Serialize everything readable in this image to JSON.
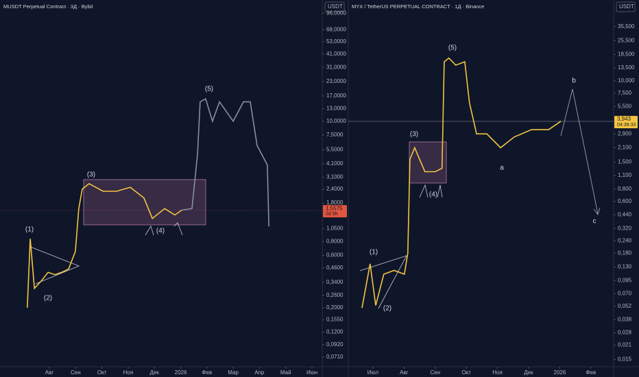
{
  "chart_data": [
    {
      "type": "line",
      "title": "MUSDT Perpetual Contract · 3Д · Bybit",
      "currency": "USDT",
      "log_scale": true,
      "xlim": [
        -0.88,
        11.39
      ],
      "ylim": [
        0.058,
        101
      ],
      "xticks": [
        {
          "value": 1,
          "label": "Авг"
        },
        {
          "value": 2,
          "label": "Сен"
        },
        {
          "value": 3,
          "label": "Окт"
        },
        {
          "value": 4,
          "label": "Ноя"
        },
        {
          "value": 5,
          "label": "Дек"
        },
        {
          "value": 6,
          "label": "2026"
        },
        {
          "value": 7,
          "label": "Фев"
        },
        {
          "value": 8,
          "label": "Мар"
        },
        {
          "value": 9,
          "label": "Апр"
        },
        {
          "value": 10,
          "label": "Май"
        },
        {
          "value": 11,
          "label": "Июн"
        }
      ],
      "yticks": [
        {
          "value": 96,
          "label": "96,0000"
        },
        {
          "value": 68,
          "label": "68,0000"
        },
        {
          "value": 53,
          "label": "53,0000"
        },
        {
          "value": 41,
          "label": "41,0000"
        },
        {
          "value": 31,
          "label": "31,0000"
        },
        {
          "value": 23,
          "label": "23,0000"
        },
        {
          "value": 17,
          "label": "17,0000"
        },
        {
          "value": 13,
          "label": "13,0000"
        },
        {
          "value": 10,
          "label": "10,0000"
        },
        {
          "value": 7.5,
          "label": "7,5000"
        },
        {
          "value": 5.5,
          "label": "5,5000"
        },
        {
          "value": 4.1,
          "label": "4,1000"
        },
        {
          "value": 3.1,
          "label": "3,1000"
        },
        {
          "value": 2.4,
          "label": "2,4000"
        },
        {
          "value": 1.8,
          "label": "1,8000"
        },
        {
          "value": 1.05,
          "label": "1,0500"
        },
        {
          "value": 0.8,
          "label": "0,8000"
        },
        {
          "value": 0.6,
          "label": "0,6000"
        },
        {
          "value": 0.46,
          "label": "0,4600"
        },
        {
          "value": 0.34,
          "label": "0,3400"
        },
        {
          "value": 0.26,
          "label": "0,2600"
        },
        {
          "value": 0.2,
          "label": "0,2000"
        },
        {
          "value": 0.155,
          "label": "0,1550"
        },
        {
          "value": 0.12,
          "label": "0,1200"
        },
        {
          "value": 0.092,
          "label": "0,0920"
        },
        {
          "value": 0.071,
          "label": "0,0710"
        }
      ],
      "last_price": {
        "value": 1.5575,
        "label": "1,5575"
      },
      "countdown": "2d 5h",
      "badge_color": "#e0553f",
      "series": [
        {
          "color": "#f5c542",
          "x": [
            0.16,
            0.27,
            0.43,
            0.69,
            0.95,
            1.21,
            1.47,
            1.73,
            1.99,
            2.12,
            2.25,
            2.51,
            3.04,
            3.56,
            4.08,
            4.6,
            4.92,
            5.39,
            5.78,
            6.04
          ],
          "values": [
            0.2,
            0.85,
            0.3,
            0.35,
            0.42,
            0.4,
            0.42,
            0.45,
            0.65,
            1.6,
            2.4,
            2.7,
            2.3,
            2.3,
            2.5,
            2.0,
            1.3,
            1.6,
            1.4,
            1.55
          ]
        },
        {
          "color": "#8a8f9e",
          "x": [
            6.04,
            6.43,
            6.64,
            6.74,
            6.95,
            7.21,
            7.48,
            8.0,
            8.39,
            8.65,
            8.91,
            9.3,
            9.36
          ],
          "values": [
            1.55,
            1.6,
            5,
            15,
            16,
            10,
            15,
            10,
            15,
            15,
            6,
            4,
            1.1
          ]
        }
      ],
      "annotations": [
        "(1)",
        "(2)",
        "(3)",
        "(4)",
        "(5)"
      ]
    },
    {
      "type": "line",
      "title": "MYX / TetherUS PERPETUAL CONTRACT · 1Д · Binance",
      "currency": "USDT",
      "log_scale": true,
      "xlim": [
        6.21,
        14.73
      ],
      "ylim": [
        0.0127,
        51
      ],
      "xticks": [
        {
          "value": 7,
          "label": "Июл"
        },
        {
          "value": 8,
          "label": "Авг"
        },
        {
          "value": 9,
          "label": "Сен"
        },
        {
          "value": 10,
          "label": "Окт"
        },
        {
          "value": 11,
          "label": "Ноя"
        },
        {
          "value": 12,
          "label": "Дек"
        },
        {
          "value": 13,
          "label": "2026"
        },
        {
          "value": 14,
          "label": "Фев"
        }
      ],
      "yticks": [
        {
          "value": 35.5,
          "label": "35,500"
        },
        {
          "value": 25.5,
          "label": "25,500"
        },
        {
          "value": 18.5,
          "label": "18,500"
        },
        {
          "value": 13.5,
          "label": "13,500"
        },
        {
          "value": 10,
          "label": "10,000"
        },
        {
          "value": 7.5,
          "label": "7,500"
        },
        {
          "value": 5.5,
          "label": "5,500"
        },
        {
          "value": 2.9,
          "label": "2,900"
        },
        {
          "value": 2.1,
          "label": "2,100"
        },
        {
          "value": 1.5,
          "label": "1,500"
        },
        {
          "value": 1.1,
          "label": "1,100"
        },
        {
          "value": 0.8,
          "label": "0,800"
        },
        {
          "value": 0.6,
          "label": "0,600"
        },
        {
          "value": 0.44,
          "label": "0,440"
        },
        {
          "value": 0.32,
          "label": "0,320"
        },
        {
          "value": 0.24,
          "label": "0,240"
        },
        {
          "value": 0.18,
          "label": "0,180"
        },
        {
          "value": 0.13,
          "label": "0,130"
        },
        {
          "value": 0.095,
          "label": "0,095"
        },
        {
          "value": 0.07,
          "label": "0,070"
        },
        {
          "value": 0.052,
          "label": "0,052"
        },
        {
          "value": 0.038,
          "label": "0,038"
        },
        {
          "value": 0.028,
          "label": "0,028"
        },
        {
          "value": 0.021,
          "label": "0,021"
        },
        {
          "value": 0.015,
          "label": "0,015"
        }
      ],
      "last_price": {
        "value": 3.943,
        "label": "3,943"
      },
      "countdown": "04:39:33",
      "badge_color": "#f5c542",
      "series": [
        {
          "color": "#f5c542",
          "x": [
            6.65,
            6.91,
            7.09,
            7.35,
            7.68,
            8.01,
            8.12,
            8.19,
            8.34,
            8.67,
            9.0,
            9.22,
            9.29,
            9.44,
            9.66,
            9.95,
            10.1,
            10.33,
            10.66,
            11.1,
            11.54,
            12.09,
            12.64,
            13.04
          ],
          "values": [
            0.05,
            0.14,
            0.053,
            0.11,
            0.12,
            0.11,
            0.18,
            1.6,
            2.1,
            1.2,
            1.2,
            1.3,
            15.6,
            17,
            14.4,
            15.6,
            6,
            2.9,
            2.9,
            2.1,
            2.7,
            3.2,
            3.2,
            3.9
          ]
        }
      ],
      "annotations": [
        "(1)",
        "(2)",
        "(3)",
        "(4)",
        "(5)",
        "a",
        "b",
        "c"
      ]
    }
  ]
}
